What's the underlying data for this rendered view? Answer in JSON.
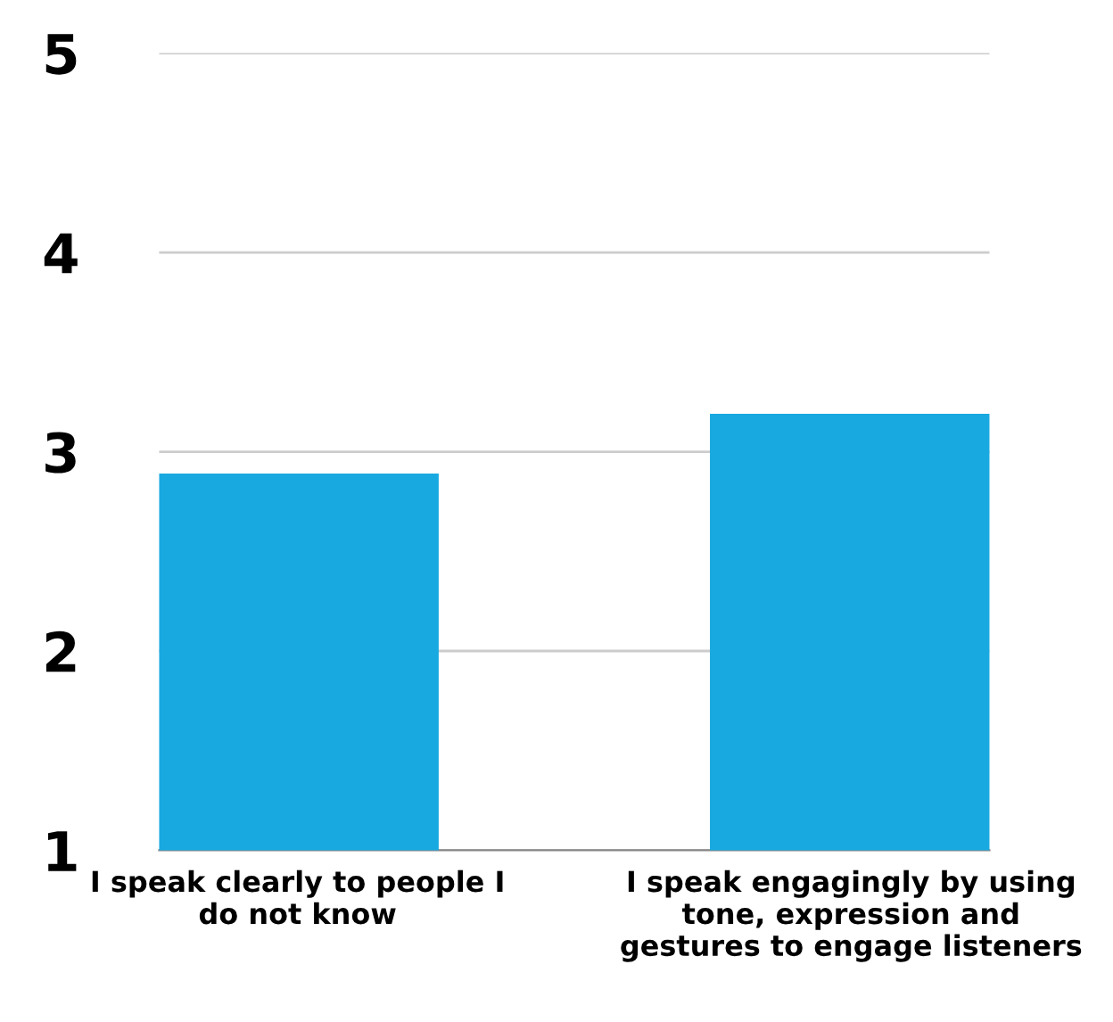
{
  "chart_data": {
    "type": "bar",
    "categories": [
      "I speak clearly to people I do not know",
      "I speak engagingly by using tone, expression and gestures to engage listeners"
    ],
    "values": [
      2.89,
      3.19
    ],
    "color": "#19a9e1",
    "ylim": [
      1,
      5
    ],
    "yticks": [
      1,
      2,
      3,
      4,
      5
    ],
    "grid": "y",
    "legend": false
  }
}
